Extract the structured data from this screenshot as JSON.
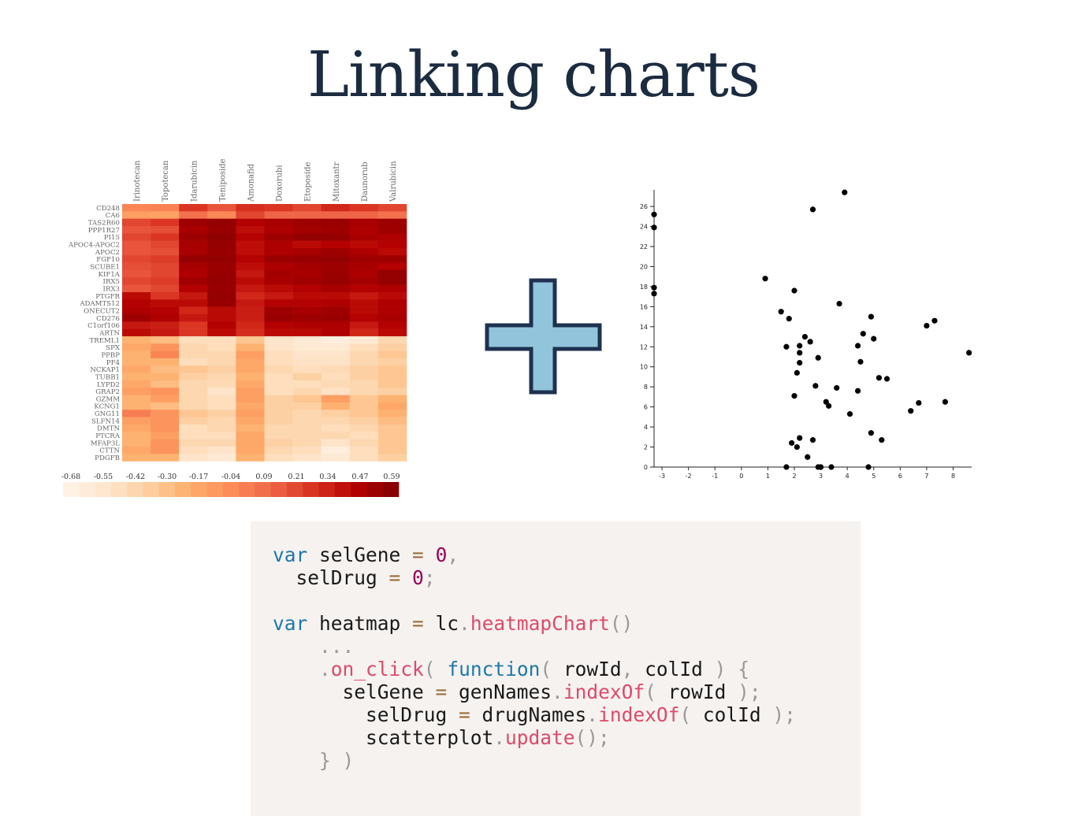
{
  "slide": {
    "title": "Linking charts"
  },
  "heatmap": {
    "columns": [
      "Irinotecan",
      "Topotecan",
      "Idarubicin",
      "Teniposide",
      "Amonafid",
      "Doxorubi",
      "Etoposide",
      "Mitoxantr",
      "Daunorub",
      "Valrubicin"
    ],
    "rows": [
      "CD248",
      "CA6",
      "TAS2R60",
      "PPP1R27",
      "PI15",
      "APOC4-APOC2",
      "APOC2",
      "FGF10",
      "SCUBE1",
      "KIF1A",
      "IRX5",
      "IRX3",
      "PTGFR",
      "ADAMTS12",
      "ONECUT2",
      "CD276",
      "C1orf106",
      "ARTN",
      "TREML1",
      "SPX",
      "PPBP",
      "PF4",
      "NCKAP1",
      "TUBB1",
      "LYPD2",
      "GRAP2",
      "GZMM",
      "KCNG1",
      "GNG11",
      "SLFN14",
      "DMTN",
      "PTCRA",
      "MFAP3L",
      "CTTN",
      "PDGFB"
    ],
    "values": [
      [
        0.02,
        0.03,
        0.3,
        0.2,
        0.32,
        0.3,
        0.25,
        0.35,
        0.3,
        0.25
      ],
      [
        -0.1,
        -0.12,
        0.1,
        0.0,
        0.25,
        0.15,
        0.15,
        0.15,
        0.15,
        0.1
      ],
      [
        0.25,
        0.3,
        0.55,
        0.58,
        0.48,
        0.52,
        0.55,
        0.56,
        0.52,
        0.55
      ],
      [
        0.2,
        0.22,
        0.52,
        0.57,
        0.44,
        0.5,
        0.53,
        0.55,
        0.5,
        0.55
      ],
      [
        0.25,
        0.3,
        0.55,
        0.6,
        0.48,
        0.55,
        0.58,
        0.58,
        0.52,
        0.5
      ],
      [
        0.2,
        0.25,
        0.52,
        0.58,
        0.44,
        0.5,
        0.45,
        0.48,
        0.45,
        0.48
      ],
      [
        0.2,
        0.22,
        0.52,
        0.57,
        0.44,
        0.5,
        0.52,
        0.55,
        0.5,
        0.45
      ],
      [
        0.25,
        0.28,
        0.58,
        0.59,
        0.48,
        0.56,
        0.57,
        0.58,
        0.55,
        0.55
      ],
      [
        0.22,
        0.25,
        0.52,
        0.56,
        0.44,
        0.5,
        0.53,
        0.55,
        0.52,
        0.48
      ],
      [
        0.2,
        0.25,
        0.5,
        0.57,
        0.4,
        0.53,
        0.52,
        0.56,
        0.5,
        0.58
      ],
      [
        0.25,
        0.28,
        0.54,
        0.58,
        0.45,
        0.52,
        0.54,
        0.57,
        0.53,
        0.58
      ],
      [
        0.2,
        0.25,
        0.48,
        0.57,
        0.4,
        0.45,
        0.48,
        0.52,
        0.48,
        0.5
      ],
      [
        0.45,
        0.3,
        0.4,
        0.58,
        0.35,
        0.4,
        0.45,
        0.45,
        0.4,
        0.45
      ],
      [
        0.48,
        0.45,
        0.45,
        0.57,
        0.4,
        0.48,
        0.48,
        0.5,
        0.45,
        0.5
      ],
      [
        0.5,
        0.48,
        0.35,
        0.45,
        0.38,
        0.55,
        0.52,
        0.55,
        0.45,
        0.5
      ],
      [
        0.55,
        0.5,
        0.4,
        0.45,
        0.38,
        0.57,
        0.55,
        0.56,
        0.48,
        0.52
      ],
      [
        0.4,
        0.38,
        0.3,
        0.48,
        0.35,
        0.48,
        0.5,
        0.5,
        0.4,
        0.48
      ],
      [
        0.45,
        0.4,
        0.3,
        0.45,
        0.33,
        0.45,
        0.45,
        0.5,
        0.35,
        0.45
      ],
      [
        -0.2,
        -0.25,
        -0.45,
        -0.45,
        -0.3,
        -0.5,
        -0.55,
        -0.6,
        -0.55,
        -0.4
      ],
      [
        -0.15,
        -0.05,
        -0.4,
        -0.45,
        -0.2,
        -0.5,
        -0.55,
        -0.55,
        -0.45,
        -0.35
      ],
      [
        -0.2,
        0.02,
        -0.4,
        -0.4,
        -0.1,
        -0.45,
        -0.5,
        -0.5,
        -0.4,
        -0.3
      ],
      [
        -0.2,
        -0.2,
        -0.45,
        -0.4,
        -0.15,
        -0.45,
        -0.48,
        -0.48,
        -0.4,
        -0.35
      ],
      [
        -0.15,
        -0.25,
        -0.3,
        -0.35,
        -0.15,
        -0.4,
        -0.45,
        -0.42,
        -0.35,
        -0.3
      ],
      [
        -0.2,
        -0.2,
        -0.35,
        -0.4,
        -0.2,
        -0.45,
        -0.35,
        -0.45,
        -0.35,
        -0.3
      ],
      [
        -0.15,
        -0.25,
        -0.4,
        -0.42,
        -0.15,
        -0.45,
        -0.45,
        -0.42,
        -0.4,
        -0.3
      ],
      [
        -0.1,
        -0.05,
        -0.4,
        -0.5,
        -0.1,
        -0.45,
        -0.4,
        -0.48,
        -0.4,
        -0.35
      ],
      [
        -0.2,
        -0.1,
        -0.4,
        -0.45,
        -0.1,
        -0.35,
        -0.3,
        -0.1,
        -0.3,
        -0.2
      ],
      [
        -0.2,
        -0.25,
        -0.4,
        -0.45,
        -0.15,
        -0.35,
        -0.35,
        -0.2,
        -0.3,
        -0.15
      ],
      [
        0.05,
        -0.05,
        -0.3,
        -0.35,
        -0.1,
        -0.35,
        -0.4,
        -0.35,
        -0.3,
        -0.2
      ],
      [
        -0.1,
        -0.05,
        -0.35,
        -0.4,
        -0.15,
        -0.35,
        -0.4,
        -0.4,
        -0.35,
        -0.25
      ],
      [
        -0.15,
        -0.05,
        -0.45,
        -0.4,
        -0.2,
        -0.4,
        -0.4,
        -0.45,
        -0.4,
        -0.3
      ],
      [
        -0.2,
        -0.1,
        -0.45,
        -0.45,
        -0.15,
        -0.4,
        -0.4,
        -0.4,
        -0.45,
        -0.3
      ],
      [
        -0.2,
        -0.05,
        -0.4,
        -0.4,
        -0.15,
        -0.35,
        -0.4,
        -0.5,
        -0.4,
        -0.3
      ],
      [
        -0.15,
        -0.05,
        -0.45,
        -0.5,
        -0.15,
        -0.4,
        -0.45,
        -0.6,
        -0.45,
        -0.3
      ],
      [
        -0.2,
        -0.2,
        -0.5,
        -0.55,
        -0.2,
        -0.45,
        -0.5,
        -0.55,
        -0.45,
        -0.35
      ]
    ],
    "legend_ticks": [
      "-0.68",
      "-0.55",
      "-0.42",
      "-0.30",
      "-0.17",
      "-0.04",
      "0.09",
      "0.21",
      "0.34",
      "0.47",
      "0.59"
    ],
    "legend_min": -0.68,
    "legend_max": 0.65
  },
  "scatter": {
    "xlim": [
      -3.3,
      8.7
    ],
    "ylim": [
      0,
      27.5
    ],
    "x_ticks": [
      -3,
      -2,
      -1,
      0,
      1,
      2,
      3,
      4,
      5,
      6,
      7,
      8
    ],
    "y_ticks": [
      0,
      2,
      4,
      6,
      8,
      10,
      12,
      14,
      16,
      18,
      20,
      22,
      24,
      26
    ],
    "points": [
      [
        -3.3,
        25.2
      ],
      [
        -3.3,
        23.9
      ],
      [
        -3.3,
        17.9
      ],
      [
        -3.3,
        17.3
      ],
      [
        3.9,
        27.4
      ],
      [
        2.7,
        25.7
      ],
      [
        0.9,
        18.8
      ],
      [
        2.0,
        17.6
      ],
      [
        3.7,
        16.3
      ],
      [
        1.5,
        15.5
      ],
      [
        1.8,
        14.8
      ],
      [
        4.9,
        15.0
      ],
      [
        7.3,
        14.6
      ],
      [
        7.0,
        14.1
      ],
      [
        4.6,
        13.3
      ],
      [
        2.4,
        13.0
      ],
      [
        2.6,
        12.5
      ],
      [
        2.2,
        12.1
      ],
      [
        1.7,
        12.0
      ],
      [
        5.0,
        12.8
      ],
      [
        4.4,
        12.1
      ],
      [
        2.2,
        11.4
      ],
      [
        2.9,
        10.9
      ],
      [
        2.2,
        10.4
      ],
      [
        4.5,
        10.5
      ],
      [
        8.6,
        11.4
      ],
      [
        2.1,
        9.4
      ],
      [
        5.2,
        8.9
      ],
      [
        5.5,
        8.8
      ],
      [
        2.8,
        8.1
      ],
      [
        3.6,
        7.9
      ],
      [
        4.4,
        7.6
      ],
      [
        2.0,
        7.1
      ],
      [
        3.2,
        6.5
      ],
      [
        3.3,
        6.1
      ],
      [
        6.7,
        6.4
      ],
      [
        7.7,
        6.5
      ],
      [
        6.4,
        5.6
      ],
      [
        4.1,
        5.3
      ],
      [
        4.9,
        3.4
      ],
      [
        2.2,
        2.9
      ],
      [
        2.7,
        2.7
      ],
      [
        5.3,
        2.7
      ],
      [
        1.9,
        2.4
      ],
      [
        2.1,
        2.0
      ],
      [
        2.5,
        1.0
      ],
      [
        1.7,
        0.0
      ],
      [
        2.9,
        0.0
      ],
      [
        3.0,
        0.0
      ],
      [
        3.4,
        0.0
      ],
      [
        4.8,
        0.0
      ]
    ]
  },
  "code": {
    "lines": [
      [
        [
          "kw",
          "var"
        ],
        [
          "tx",
          " selGene "
        ],
        [
          "op",
          "="
        ],
        [
          "tx",
          " "
        ],
        [
          "num",
          "0"
        ],
        [
          "pu",
          ","
        ]
      ],
      [
        [
          "tx",
          "  selDrug "
        ],
        [
          "op",
          "="
        ],
        [
          "tx",
          " "
        ],
        [
          "num",
          "0"
        ],
        [
          "pu",
          ";"
        ]
      ],
      [
        [
          "tx",
          ""
        ]
      ],
      [
        [
          "kw",
          "var"
        ],
        [
          "tx",
          " heatmap "
        ],
        [
          "op",
          "="
        ],
        [
          "tx",
          " lc"
        ],
        [
          "pu",
          "."
        ],
        [
          "fn",
          "heatmapChart"
        ],
        [
          "pu",
          "()"
        ]
      ],
      [
        [
          "tx",
          "    "
        ],
        [
          "pu",
          "..."
        ]
      ],
      [
        [
          "tx",
          "    "
        ],
        [
          "pu",
          "."
        ],
        [
          "fn",
          "on_click"
        ],
        [
          "pu",
          "("
        ],
        [
          "tx",
          " "
        ],
        [
          "kw",
          "function"
        ],
        [
          "pu",
          "("
        ],
        [
          "tx",
          " rowId"
        ],
        [
          "pu",
          ","
        ],
        [
          "tx",
          " colId "
        ],
        [
          "pu",
          ")"
        ],
        [
          "tx",
          " "
        ],
        [
          "pu",
          "{"
        ]
      ],
      [
        [
          "tx",
          "      selGene "
        ],
        [
          "op",
          "="
        ],
        [
          "tx",
          " genNames"
        ],
        [
          "pu",
          "."
        ],
        [
          "fn",
          "indexOf"
        ],
        [
          "pu",
          "("
        ],
        [
          "tx",
          " rowId "
        ],
        [
          "pu",
          ");"
        ]
      ],
      [
        [
          "tx",
          "        selDrug "
        ],
        [
          "op",
          "="
        ],
        [
          "tx",
          " drugNames"
        ],
        [
          "pu",
          "."
        ],
        [
          "fn",
          "indexOf"
        ],
        [
          "pu",
          "("
        ],
        [
          "tx",
          " colId "
        ],
        [
          "pu",
          ");"
        ]
      ],
      [
        [
          "tx",
          "        scatterplot"
        ],
        [
          "pu",
          "."
        ],
        [
          "fn",
          "update"
        ],
        [
          "pu",
          "();"
        ]
      ],
      [
        [
          "tx",
          "    "
        ],
        [
          "pu",
          "} )"
        ]
      ]
    ]
  }
}
